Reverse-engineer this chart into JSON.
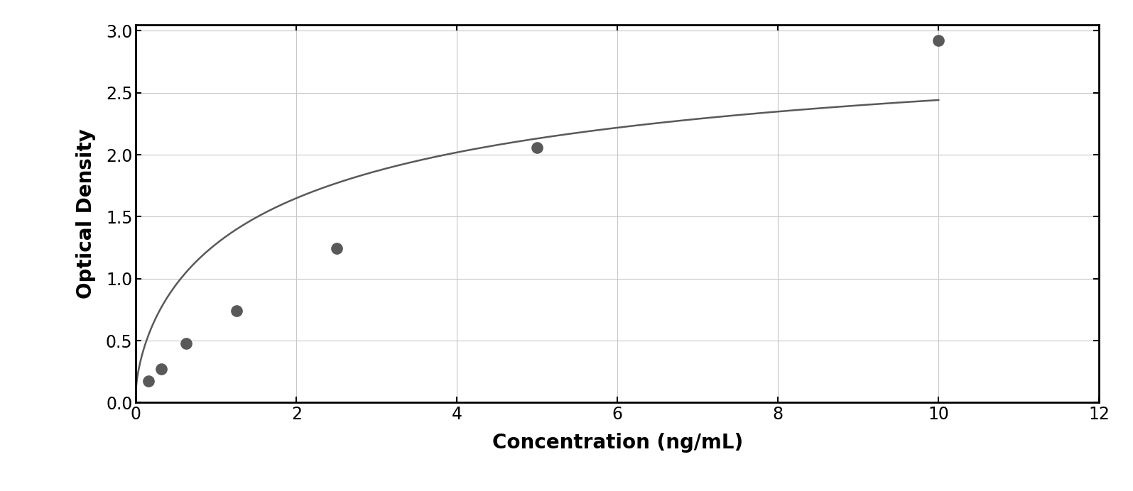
{
  "x_data": [
    0.156,
    0.313,
    0.625,
    1.25,
    2.5,
    5.0,
    10.0
  ],
  "y_data": [
    0.175,
    0.27,
    0.475,
    0.74,
    1.245,
    2.055,
    2.92
  ],
  "xlabel": "Concentration (ng/mL)",
  "ylabel": "Optical Density",
  "xlim": [
    0,
    12
  ],
  "ylim": [
    0,
    3.05
  ],
  "xticks": [
    0,
    2,
    4,
    6,
    8,
    10,
    12
  ],
  "yticks": [
    0,
    0.5,
    1.0,
    1.5,
    2.0,
    2.5,
    3.0
  ],
  "data_color": "#595959",
  "line_color": "#595959",
  "grid_color": "#c8c8c8",
  "background_color": "#ffffff",
  "figure_background": "#ffffff",
  "xlabel_fontsize": 20,
  "ylabel_fontsize": 20,
  "tick_fontsize": 17,
  "marker_size": 11,
  "line_width": 1.8,
  "curve_xmax": 10.0
}
